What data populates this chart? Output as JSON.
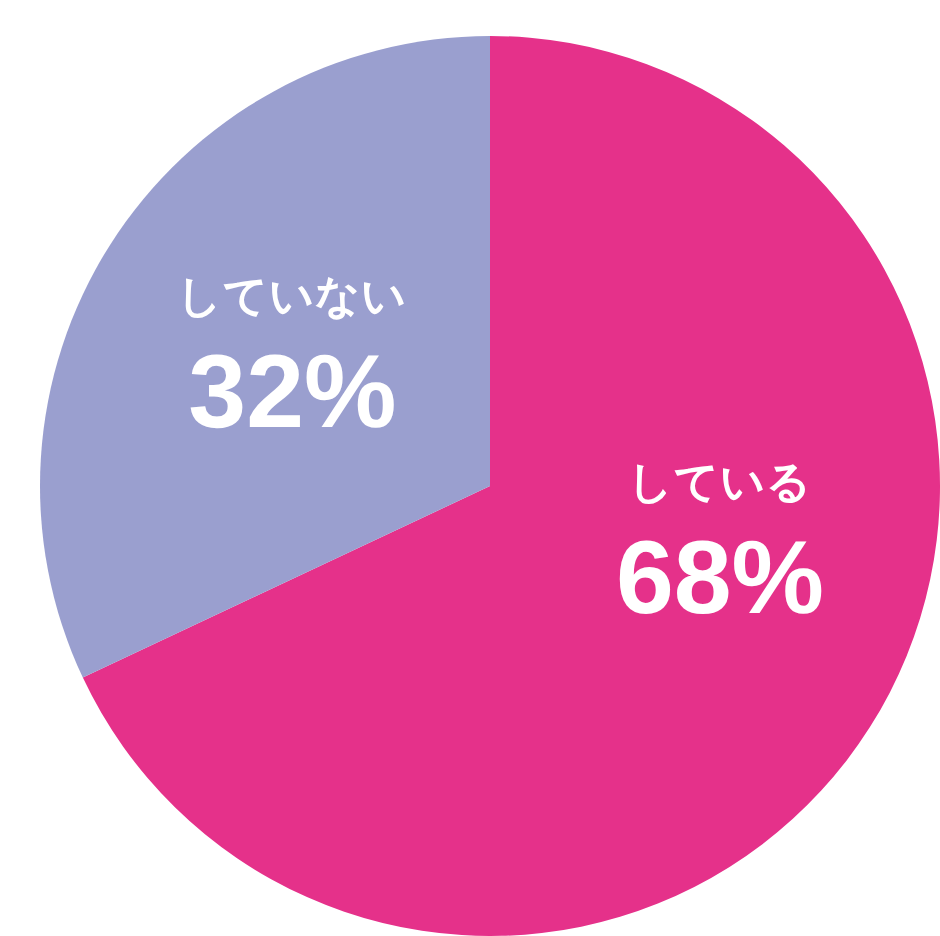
{
  "chart_data": {
    "type": "pie",
    "categories": [
      "している",
      "していない"
    ],
    "values": [
      68,
      32
    ],
    "colors": [
      "#e5318a",
      "#9a9fcf"
    ],
    "value_labels": [
      "68%",
      "32%"
    ]
  }
}
